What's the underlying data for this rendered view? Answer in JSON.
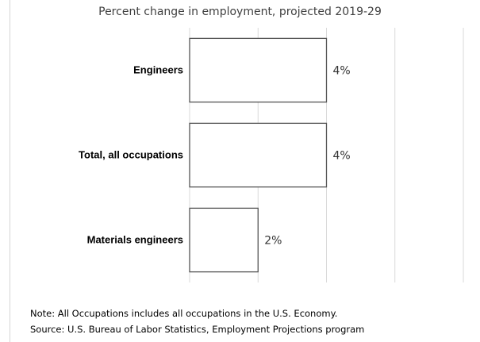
{
  "chart_data": {
    "type": "bar",
    "orientation": "horizontal",
    "title": "Percent change in employment, projected 2019-29",
    "categories": [
      "Engineers",
      "Total, all occupations",
      "Materials engineers"
    ],
    "values": [
      4,
      4,
      2
    ],
    "value_labels": [
      "4%",
      "4%",
      "2%"
    ],
    "xlim": [
      0,
      8
    ],
    "grid": true,
    "legend": "none",
    "colors": {
      "bar_fill": "#ffffff",
      "bar_stroke": "#555555",
      "grid": "#d9d9d9",
      "label": "#000000"
    }
  },
  "notes": {
    "note": "Note: All Occupations includes all occupations in the U.S. Economy.",
    "source": "Source: U.S. Bureau of Labor Statistics, Employment Projections program"
  }
}
